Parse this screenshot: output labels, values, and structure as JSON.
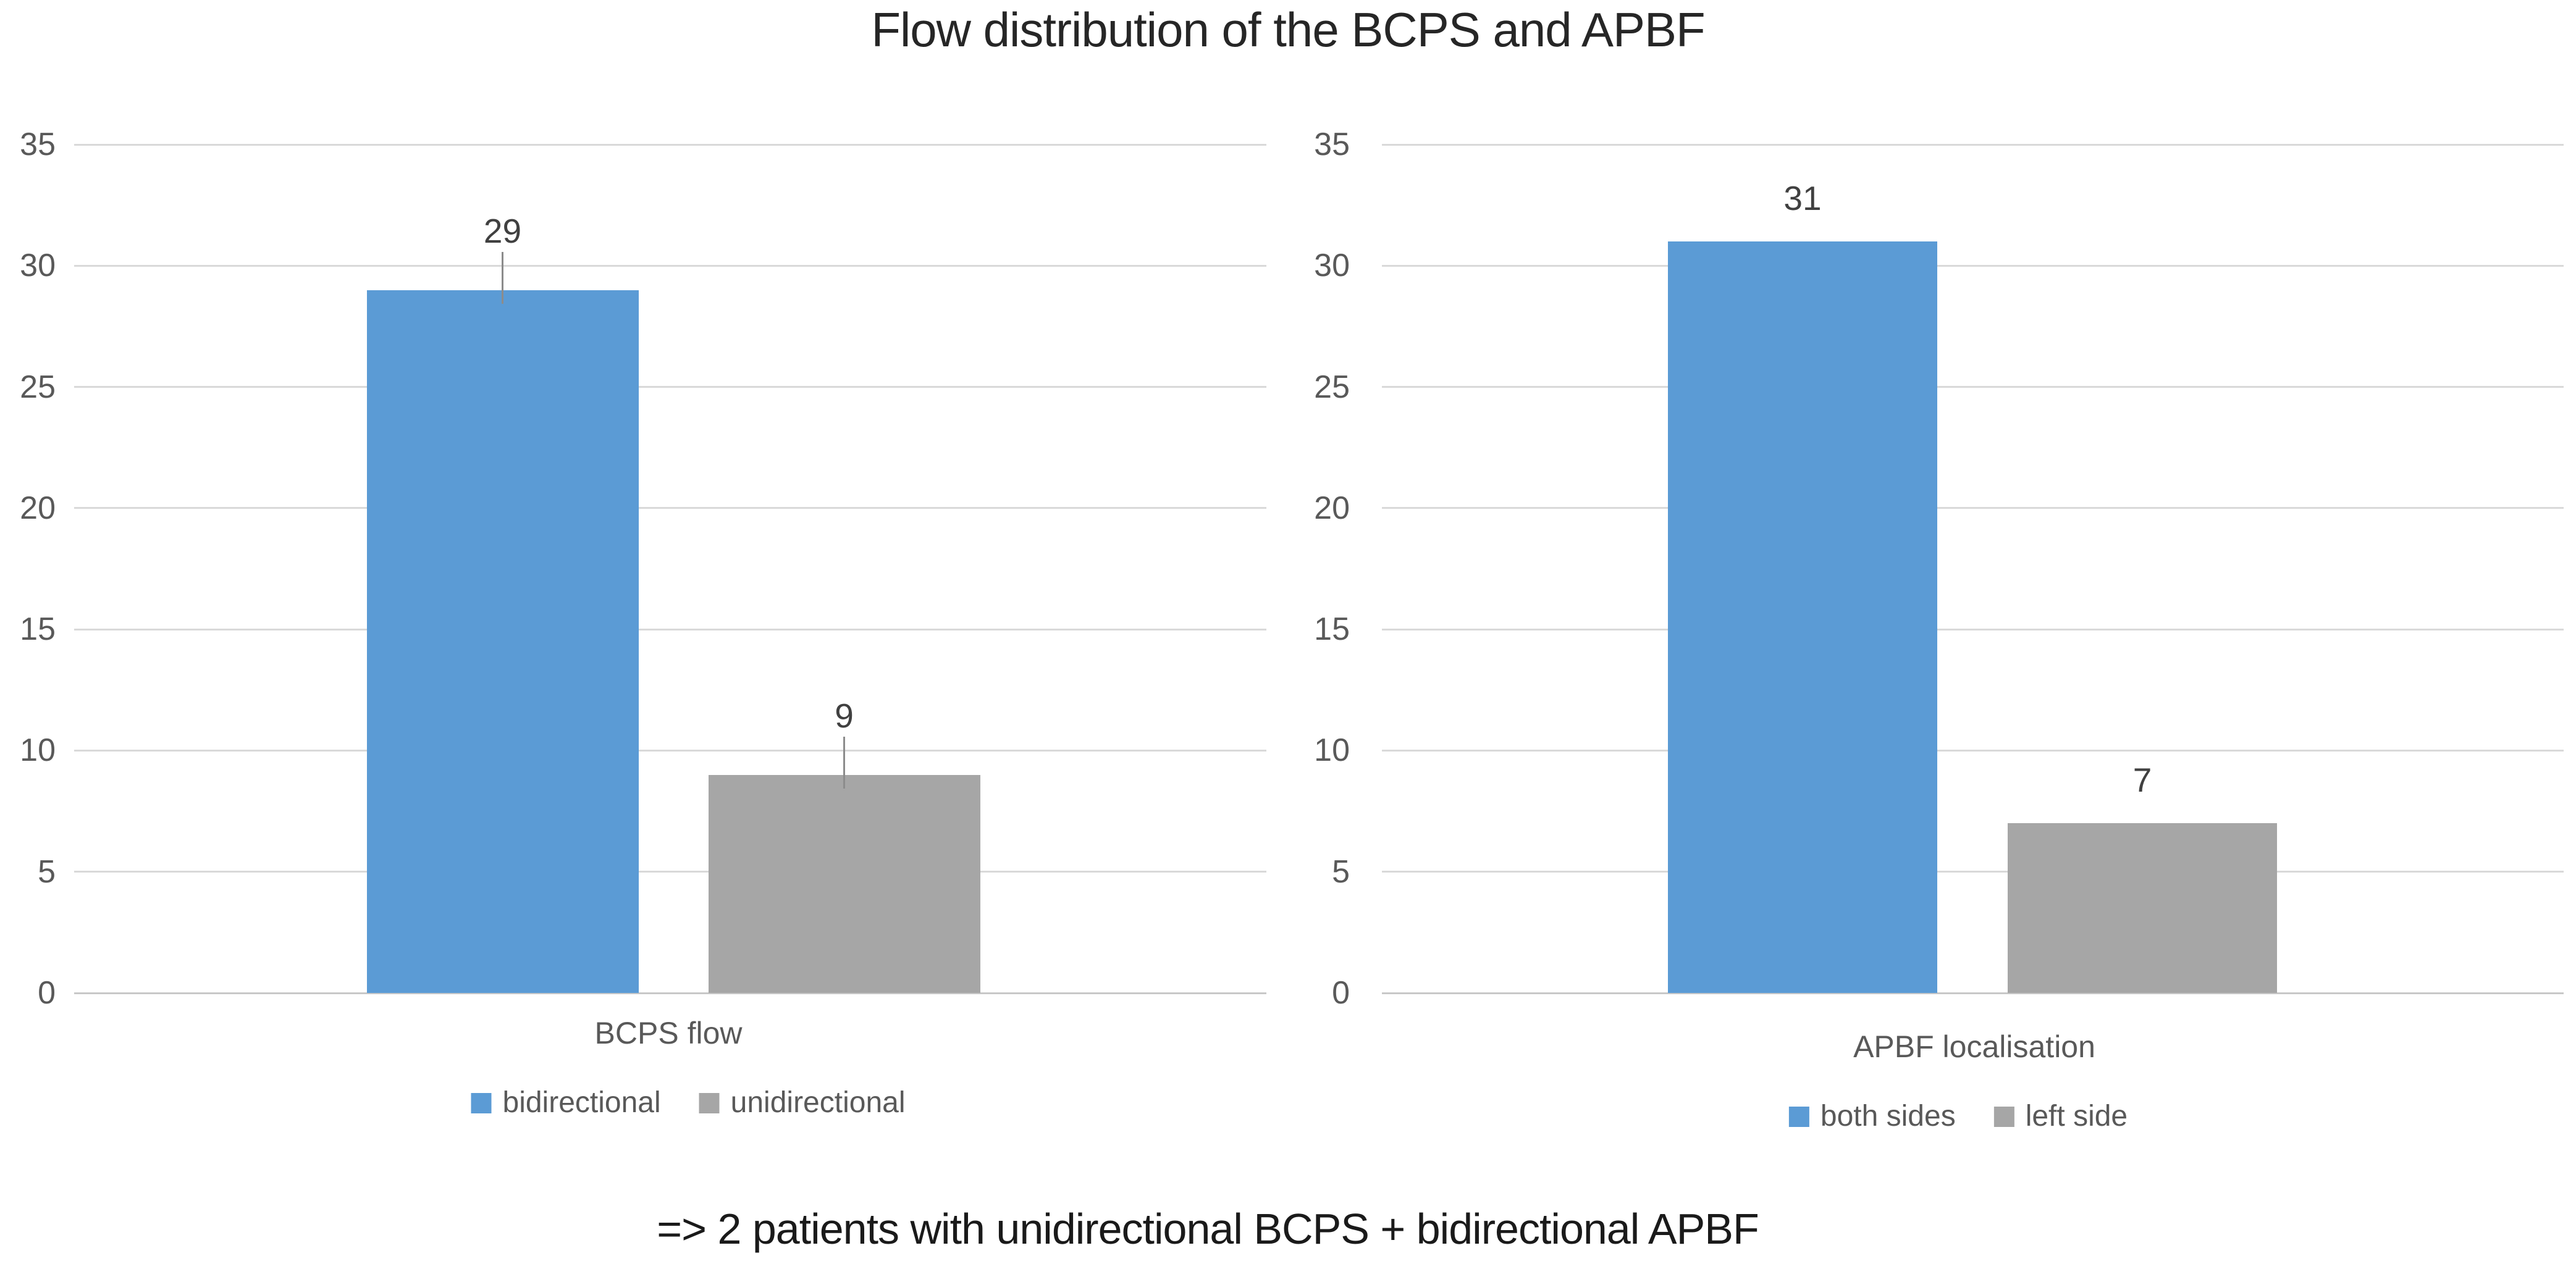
{
  "title": "Flow distribution of the BCPS and APBF",
  "footnote": "=> 2 patients with unidirectional BCPS + bidirectional APBF",
  "colors": {
    "series_blue": "#5B9BD5",
    "series_gray": "#A6A6A6",
    "gridline": "#D9D9D9",
    "axis_line": "#C8C8C8",
    "tick_label": "#595959",
    "category_label": "#595959",
    "legend_label": "#595959",
    "data_label": "#404040",
    "title_text": "#262626",
    "footnote_text": "#1A1A1A",
    "leader_line": "#8C8C8C",
    "background": "#FFFFFF"
  },
  "chart_data": [
    {
      "type": "bar",
      "title": "",
      "xlabel": "BCPS flow",
      "ylabel": "",
      "ylim": [
        0,
        35
      ],
      "yticks": [
        35,
        30,
        25,
        20,
        15,
        10,
        5,
        0
      ],
      "grid": true,
      "legend_position": "bottom",
      "categories": [
        "BCPS flow"
      ],
      "series": [
        {
          "name": "bidirectional",
          "values": [
            29
          ],
          "color": "#5B9BD5",
          "data_label": "29",
          "leader_line": true
        },
        {
          "name": "unidirectional",
          "values": [
            9
          ],
          "color": "#A6A6A6",
          "data_label": "9",
          "leader_line": true
        }
      ]
    },
    {
      "type": "bar",
      "title": "",
      "xlabel": "APBF localisation",
      "ylabel": "",
      "ylim": [
        0,
        35
      ],
      "yticks": [
        35,
        30,
        25,
        20,
        15,
        10,
        5,
        0
      ],
      "grid": true,
      "legend_position": "bottom",
      "categories": [
        "APBF localisation"
      ],
      "series": [
        {
          "name": "both sides",
          "values": [
            31
          ],
          "color": "#5B9BD5",
          "data_label": "31",
          "leader_line": false
        },
        {
          "name": "left side",
          "values": [
            7
          ],
          "color": "#A6A6A6",
          "data_label": "7",
          "leader_line": false
        }
      ]
    }
  ]
}
